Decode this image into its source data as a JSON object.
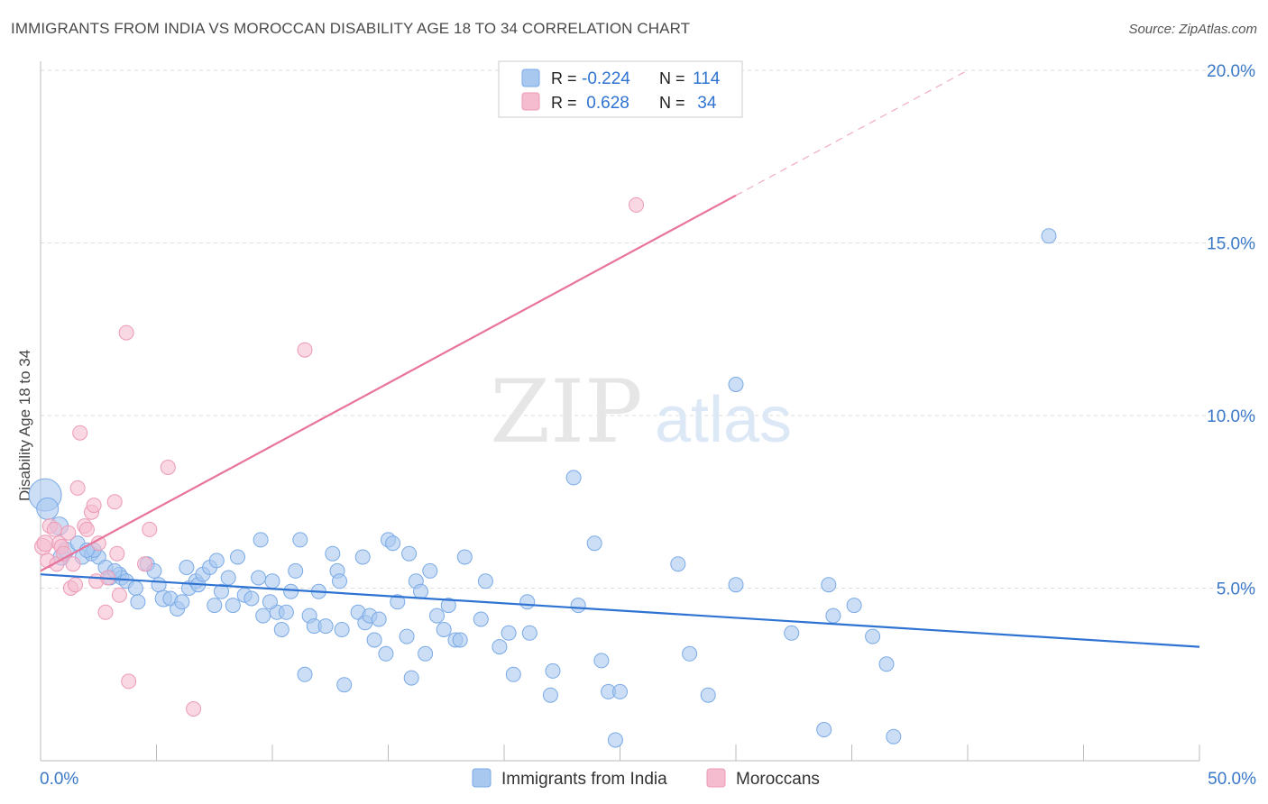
{
  "header": {
    "title": "IMMIGRANTS FROM INDIA VS MOROCCAN DISABILITY AGE 18 TO 34 CORRELATION CHART",
    "source": "Source: ZipAtlas.com"
  },
  "watermark": {
    "zip": "ZIP",
    "atlas": "atlas"
  },
  "colors": {
    "blue_fill": "#a9c8f0",
    "blue_stroke": "#7aaae6",
    "blue_line": "#2f73d2",
    "pink_fill": "#f5bcd0",
    "pink_stroke": "#ec9ab6",
    "pink_line": "#e8739b",
    "axis_text": "#3a78c8",
    "grid": "#dddddd"
  },
  "legend": {
    "rows": [
      {
        "r_label": "R = ",
        "r_value": "-0.224",
        "n_label": "N = ",
        "n_value": "114"
      },
      {
        "r_label": "R = ",
        "r_value": " 0.628",
        "n_label": "N = ",
        "n_value": " 34"
      }
    ]
  },
  "bottom_legend": [
    "Immigrants from India",
    "Moroccans"
  ],
  "chart_data": {
    "type": "scatter",
    "ylabel": "Disability Age 18 to 34",
    "xlabel": "",
    "xlim": [
      0,
      50
    ],
    "ylim": [
      0,
      20
    ],
    "x_tick_labels": [
      "0.0%",
      "50.0%"
    ],
    "y_ticks": [
      5,
      10,
      15,
      20
    ],
    "y_tick_labels": [
      "5.0%",
      "10.0%",
      "15.0%",
      "20.0%"
    ],
    "grid": true,
    "legend_position": "top-center",
    "series": [
      {
        "name": "Immigrants from India",
        "r": -0.224,
        "n": 114,
        "trend": {
          "x": [
            0,
            50
          ],
          "y": [
            5.4,
            3.3
          ],
          "dashed_from": null
        },
        "points": [
          [
            0.2,
            7.7,
            18
          ],
          [
            0.3,
            7.3,
            12
          ],
          [
            0.8,
            6.8,
            10
          ],
          [
            0.9,
            5.9,
            9
          ],
          [
            1.1,
            6.1,
            9
          ],
          [
            1.6,
            6.3,
            8
          ],
          [
            1.8,
            5.9,
            8
          ],
          [
            2.2,
            6.0,
            8
          ],
          [
            2.5,
            5.9,
            8
          ],
          [
            2.3,
            6.1,
            8
          ],
          [
            2.8,
            5.6,
            8
          ],
          [
            3.0,
            5.3,
            8
          ],
          [
            3.4,
            5.4,
            8
          ],
          [
            3.5,
            5.3,
            8
          ],
          [
            3.7,
            5.2,
            8
          ],
          [
            4.1,
            5.0,
            8
          ],
          [
            4.2,
            4.6,
            8
          ],
          [
            4.6,
            5.7,
            8
          ],
          [
            4.9,
            5.5,
            8
          ],
          [
            5.1,
            5.1,
            8
          ],
          [
            5.3,
            4.7,
            9
          ],
          [
            5.6,
            4.7,
            8
          ],
          [
            5.9,
            4.4,
            8
          ],
          [
            6.1,
            4.6,
            8
          ],
          [
            6.4,
            5.0,
            8
          ],
          [
            6.7,
            5.2,
            8
          ],
          [
            6.8,
            5.1,
            8
          ],
          [
            7.0,
            5.4,
            8
          ],
          [
            7.3,
            5.6,
            8
          ],
          [
            7.5,
            4.5,
            8
          ],
          [
            7.8,
            4.9,
            8
          ],
          [
            7.6,
            5.8,
            8
          ],
          [
            8.1,
            5.3,
            8
          ],
          [
            8.3,
            4.5,
            8
          ],
          [
            8.5,
            5.9,
            8
          ],
          [
            8.8,
            4.8,
            8
          ],
          [
            9.1,
            4.7,
            8
          ],
          [
            9.4,
            5.3,
            8
          ],
          [
            9.5,
            6.4,
            8
          ],
          [
            9.6,
            4.2,
            8
          ],
          [
            10.0,
            5.2,
            8
          ],
          [
            10.2,
            4.3,
            8
          ],
          [
            10.4,
            3.8,
            8
          ],
          [
            10.6,
            4.3,
            8
          ],
          [
            10.8,
            4.9,
            8
          ],
          [
            11.0,
            5.5,
            8
          ],
          [
            11.2,
            6.4,
            8
          ],
          [
            11.4,
            2.5,
            8
          ],
          [
            11.6,
            4.2,
            8
          ],
          [
            11.8,
            3.9,
            8
          ],
          [
            12.0,
            4.9,
            8
          ],
          [
            12.3,
            3.9,
            8
          ],
          [
            12.6,
            6.0,
            8
          ],
          [
            12.8,
            5.5,
            8
          ],
          [
            12.9,
            5.2,
            8
          ],
          [
            13.0,
            3.8,
            8
          ],
          [
            13.1,
            2.2,
            8
          ],
          [
            13.7,
            4.3,
            8
          ],
          [
            13.9,
            5.9,
            8
          ],
          [
            14.0,
            4.0,
            8
          ],
          [
            14.2,
            4.2,
            8
          ],
          [
            14.4,
            3.5,
            8
          ],
          [
            14.6,
            4.1,
            8
          ],
          [
            14.9,
            3.1,
            8
          ],
          [
            15.0,
            6.4,
            8
          ],
          [
            15.2,
            6.3,
            8
          ],
          [
            15.4,
            4.6,
            8
          ],
          [
            15.8,
            3.6,
            8
          ],
          [
            15.9,
            6.0,
            8
          ],
          [
            16.0,
            2.4,
            8
          ],
          [
            16.2,
            5.2,
            8
          ],
          [
            16.4,
            4.9,
            8
          ],
          [
            16.6,
            3.1,
            8
          ],
          [
            16.8,
            5.5,
            8
          ],
          [
            17.1,
            4.2,
            8
          ],
          [
            17.4,
            3.8,
            8
          ],
          [
            17.6,
            4.5,
            8
          ],
          [
            17.9,
            3.5,
            8
          ],
          [
            18.1,
            3.5,
            8
          ],
          [
            18.3,
            5.9,
            8
          ],
          [
            19.0,
            4.1,
            8
          ],
          [
            19.2,
            5.2,
            8
          ],
          [
            19.8,
            3.3,
            8
          ],
          [
            20.2,
            3.7,
            8
          ],
          [
            20.4,
            2.5,
            8
          ],
          [
            21.0,
            4.6,
            8
          ],
          [
            21.1,
            3.7,
            8
          ],
          [
            22.0,
            1.9,
            8
          ],
          [
            22.1,
            2.6,
            8
          ],
          [
            23.0,
            8.2,
            8
          ],
          [
            23.2,
            4.5,
            8
          ],
          [
            23.9,
            6.3,
            8
          ],
          [
            24.2,
            2.9,
            8
          ],
          [
            24.5,
            2.0,
            8
          ],
          [
            24.8,
            0.6,
            8
          ],
          [
            25.0,
            2.0,
            8
          ],
          [
            27.5,
            5.7,
            8
          ],
          [
            28.0,
            3.1,
            8
          ],
          [
            28.8,
            1.9,
            8
          ],
          [
            30.0,
            10.9,
            8
          ],
          [
            30.0,
            5.1,
            8
          ],
          [
            32.4,
            3.7,
            8
          ],
          [
            33.8,
            0.9,
            8
          ],
          [
            34.0,
            5.1,
            8
          ],
          [
            34.2,
            4.2,
            8
          ],
          [
            35.1,
            4.5,
            8
          ],
          [
            35.9,
            3.6,
            8
          ],
          [
            36.5,
            2.8,
            8
          ],
          [
            36.8,
            0.7,
            8
          ],
          [
            43.5,
            15.2,
            8
          ],
          [
            2.0,
            6.1,
            8
          ],
          [
            3.2,
            5.5,
            8
          ],
          [
            6.3,
            5.6,
            8
          ],
          [
            9.9,
            4.6,
            8
          ]
        ]
      },
      {
        "name": "Moroccans",
        "r": 0.628,
        "n": 34,
        "trend": {
          "x": [
            0,
            40
          ],
          "y": [
            5.5,
            20.0
          ],
          "dashed_from": 30
        },
        "points": [
          [
            0.1,
            6.2,
            9
          ],
          [
            0.2,
            6.3,
            9
          ],
          [
            0.3,
            5.8,
            8
          ],
          [
            0.4,
            6.8,
            8
          ],
          [
            0.6,
            6.7,
            8
          ],
          [
            0.7,
            5.7,
            8
          ],
          [
            0.8,
            6.3,
            8
          ],
          [
            0.9,
            6.2,
            8
          ],
          [
            1.0,
            6.0,
            8
          ],
          [
            1.2,
            6.6,
            8
          ],
          [
            1.3,
            5.0,
            8
          ],
          [
            1.4,
            5.7,
            8
          ],
          [
            1.5,
            5.1,
            8
          ],
          [
            1.6,
            7.9,
            8
          ],
          [
            1.7,
            9.5,
            8
          ],
          [
            1.9,
            6.8,
            8
          ],
          [
            2.0,
            6.7,
            8
          ],
          [
            2.2,
            7.2,
            8
          ],
          [
            2.3,
            7.4,
            8
          ],
          [
            2.4,
            5.2,
            8
          ],
          [
            2.5,
            6.3,
            8
          ],
          [
            2.8,
            4.3,
            8
          ],
          [
            2.9,
            5.3,
            8
          ],
          [
            3.2,
            7.5,
            8
          ],
          [
            3.3,
            6.0,
            8
          ],
          [
            3.4,
            4.8,
            8
          ],
          [
            3.7,
            12.4,
            8
          ],
          [
            3.8,
            2.3,
            8
          ],
          [
            4.5,
            5.7,
            8
          ],
          [
            4.7,
            6.7,
            8
          ],
          [
            5.5,
            8.5,
            8
          ],
          [
            6.6,
            1.5,
            8
          ],
          [
            11.4,
            11.9,
            8
          ],
          [
            25.7,
            16.1,
            8
          ]
        ]
      }
    ]
  }
}
